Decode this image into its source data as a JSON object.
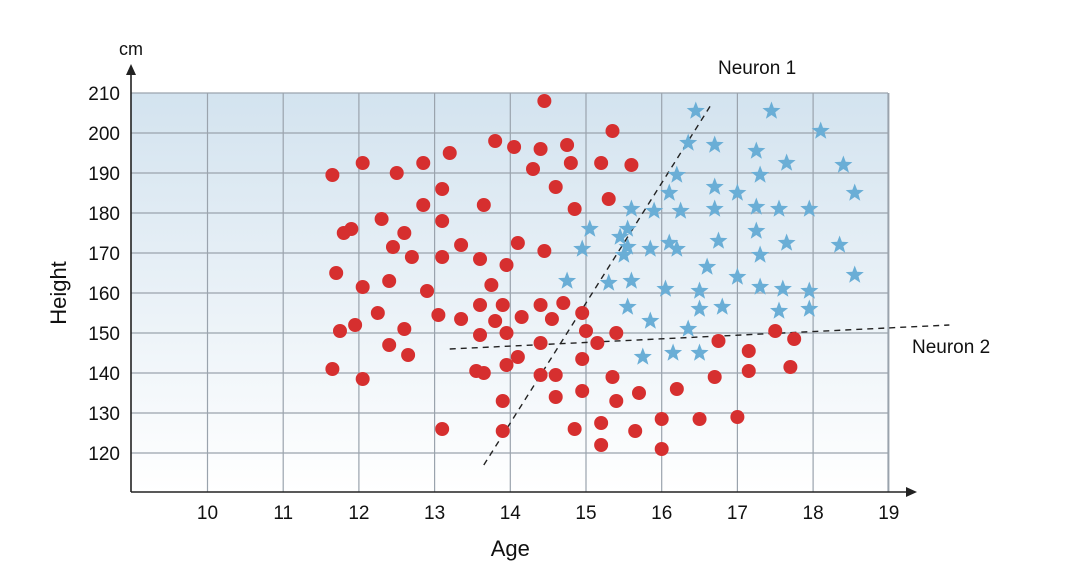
{
  "chart_data": {
    "type": "scatter",
    "xlabel": "Age",
    "ylabel": "Height",
    "y_unit": "cm",
    "xlim": [
      9,
      19
    ],
    "ylim": [
      110,
      210
    ],
    "x_ticks": [
      10,
      11,
      12,
      13,
      14,
      15,
      16,
      17,
      18,
      19
    ],
    "y_ticks": [
      120,
      130,
      140,
      150,
      160,
      170,
      180,
      190,
      200,
      210
    ],
    "grid": true,
    "colors": {
      "red": "#d62f2f",
      "blue": "#6aaed6",
      "plot_top": "#d3e3ef",
      "plot_bottom": "#ffffff"
    },
    "series": [
      {
        "marker": "circle",
        "color": "#d62f2f",
        "points": [
          [
            14.45,
            208
          ],
          [
            15.35,
            200.5
          ],
          [
            13.8,
            198
          ],
          [
            14.05,
            196.5
          ],
          [
            14.4,
            196
          ],
          [
            14.75,
            197
          ],
          [
            12.05,
            192.5
          ],
          [
            12.85,
            192.5
          ],
          [
            14.8,
            192.5
          ],
          [
            15.2,
            192.5
          ],
          [
            15.6,
            192
          ],
          [
            14.3,
            191
          ],
          [
            11.65,
            189.5
          ],
          [
            12.5,
            190
          ],
          [
            13.2,
            195
          ],
          [
            13.1,
            186
          ],
          [
            14.6,
            186.5
          ],
          [
            12.85,
            182
          ],
          [
            13.65,
            182
          ],
          [
            14.85,
            181
          ],
          [
            15.3,
            183.5
          ],
          [
            12.3,
            178.5
          ],
          [
            13.1,
            178
          ],
          [
            11.9,
            176
          ],
          [
            11.8,
            175
          ],
          [
            12.6,
            175
          ],
          [
            12.45,
            171.5
          ],
          [
            13.35,
            172
          ],
          [
            14.1,
            172.5
          ],
          [
            14.45,
            170.5
          ],
          [
            13.1,
            169
          ],
          [
            12.7,
            169
          ],
          [
            13.6,
            168.5
          ],
          [
            13.95,
            167
          ],
          [
            11.7,
            165
          ],
          [
            12.4,
            163
          ],
          [
            13.75,
            162
          ],
          [
            12.05,
            161.5
          ],
          [
            12.9,
            160.5
          ],
          [
            14.7,
            157.5
          ],
          [
            14.4,
            157
          ],
          [
            13.6,
            157
          ],
          [
            13.9,
            157
          ],
          [
            12.25,
            155
          ],
          [
            13.05,
            154.5
          ],
          [
            13.35,
            153.5
          ],
          [
            14.15,
            154
          ],
          [
            14.55,
            153.5
          ],
          [
            14.95,
            155
          ],
          [
            13.8,
            153
          ],
          [
            11.95,
            152
          ],
          [
            11.75,
            150.5
          ],
          [
            12.6,
            151
          ],
          [
            13.6,
            149.5
          ],
          [
            13.95,
            150
          ],
          [
            15,
            150.5
          ],
          [
            15.4,
            150
          ],
          [
            12.4,
            147
          ],
          [
            14.4,
            147.5
          ],
          [
            15.15,
            147.5
          ],
          [
            12.65,
            144.5
          ],
          [
            14.1,
            144
          ],
          [
            14.95,
            143.5
          ],
          [
            11.65,
            141
          ],
          [
            13.95,
            142
          ],
          [
            13.55,
            140.5
          ],
          [
            13.65,
            140
          ],
          [
            14.4,
            139.5
          ],
          [
            14.6,
            139.5
          ],
          [
            15.35,
            139
          ],
          [
            12.05,
            138.5
          ],
          [
            14.95,
            135.5
          ],
          [
            15.7,
            135
          ],
          [
            16.2,
            136
          ],
          [
            13.9,
            133
          ],
          [
            14.6,
            134
          ],
          [
            15.4,
            133
          ],
          [
            15.2,
            127.5
          ],
          [
            16,
            128.5
          ],
          [
            16.5,
            128.5
          ],
          [
            17,
            129
          ],
          [
            13.1,
            126
          ],
          [
            13.9,
            125.5
          ],
          [
            14.85,
            126
          ],
          [
            15.65,
            125.5
          ],
          [
            15.2,
            122
          ],
          [
            16,
            121
          ],
          [
            16.75,
            148
          ],
          [
            17.15,
            145.5
          ],
          [
            17.5,
            150.5
          ],
          [
            17.75,
            148.5
          ],
          [
            16.7,
            139
          ],
          [
            17.15,
            140.5
          ],
          [
            17.7,
            141.5
          ]
        ]
      },
      {
        "marker": "star",
        "color": "#6aaed6",
        "points": [
          [
            16.45,
            205.5
          ],
          [
            17.45,
            205.5
          ],
          [
            18.1,
            200.5
          ],
          [
            16.35,
            197.5
          ],
          [
            16.7,
            197
          ],
          [
            17.25,
            195.5
          ],
          [
            17.65,
            192.5
          ],
          [
            18.4,
            192
          ],
          [
            16.2,
            189.5
          ],
          [
            17.3,
            189.5
          ],
          [
            16.7,
            186.5
          ],
          [
            16.1,
            185
          ],
          [
            17,
            185
          ],
          [
            18.55,
            185
          ],
          [
            15.6,
            181
          ],
          [
            15.9,
            180.5
          ],
          [
            16.25,
            180.5
          ],
          [
            16.7,
            181
          ],
          [
            17.25,
            181.5
          ],
          [
            17.55,
            181
          ],
          [
            17.95,
            181
          ],
          [
            15.05,
            176
          ],
          [
            15.55,
            176
          ],
          [
            15.45,
            174
          ],
          [
            17.25,
            175.5
          ],
          [
            16.75,
            173
          ],
          [
            17.65,
            172.5
          ],
          [
            18.35,
            172
          ],
          [
            14.95,
            171
          ],
          [
            15.55,
            171.5
          ],
          [
            15.85,
            171
          ],
          [
            16.1,
            172.5
          ],
          [
            16.2,
            171
          ],
          [
            15.5,
            169.5
          ],
          [
            17.3,
            169.5
          ],
          [
            16.6,
            166.5
          ],
          [
            18.55,
            164.5
          ],
          [
            14.75,
            163
          ],
          [
            15.3,
            162.5
          ],
          [
            15.6,
            163
          ],
          [
            17,
            164
          ],
          [
            16.05,
            161
          ],
          [
            16.5,
            160.5
          ],
          [
            17.3,
            161.5
          ],
          [
            17.6,
            161
          ],
          [
            17.95,
            160.5
          ],
          [
            15.55,
            156.5
          ],
          [
            16.5,
            156
          ],
          [
            16.8,
            156.5
          ],
          [
            17.55,
            155.5
          ],
          [
            17.95,
            156
          ],
          [
            15.85,
            153
          ],
          [
            16.35,
            151
          ],
          [
            15.75,
            144
          ],
          [
            16.15,
            145
          ],
          [
            16.5,
            145
          ]
        ]
      }
    ],
    "decision_lines": [
      {
        "label": "Neuron 1",
        "from": [
          13.65,
          117
        ],
        "to": [
          16.65,
          207
        ]
      },
      {
        "label": "Neuron 2",
        "from": [
          13.2,
          146
        ],
        "to": [
          19.8,
          152
        ]
      }
    ]
  }
}
